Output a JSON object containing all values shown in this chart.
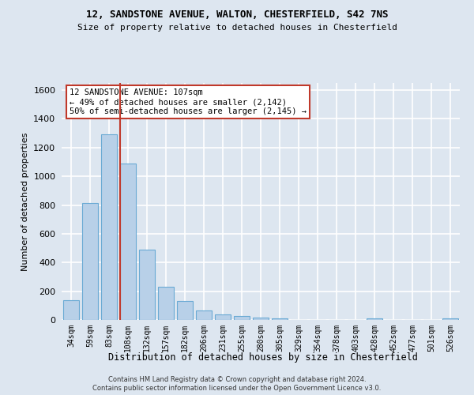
{
  "title_line1": "12, SANDSTONE AVENUE, WALTON, CHESTERFIELD, S42 7NS",
  "title_line2": "Size of property relative to detached houses in Chesterfield",
  "xlabel": "Distribution of detached houses by size in Chesterfield",
  "ylabel": "Number of detached properties",
  "footer1": "Contains HM Land Registry data © Crown copyright and database right 2024.",
  "footer2": "Contains public sector information licensed under the Open Government Licence v3.0.",
  "bar_labels": [
    "34sqm",
    "59sqm",
    "83sqm",
    "108sqm",
    "132sqm",
    "157sqm",
    "182sqm",
    "206sqm",
    "231sqm",
    "255sqm",
    "280sqm",
    "305sqm",
    "329sqm",
    "354sqm",
    "378sqm",
    "403sqm",
    "428sqm",
    "452sqm",
    "477sqm",
    "501sqm",
    "526sqm"
  ],
  "bar_values": [
    135,
    815,
    1295,
    1090,
    490,
    232,
    130,
    65,
    37,
    25,
    15,
    12,
    0,
    0,
    0,
    0,
    13,
    0,
    0,
    0,
    13
  ],
  "bar_color": "#b8d0e8",
  "bar_edge_color": "#6aaad4",
  "vline_color": "#c0392b",
  "vline_x": 2.575,
  "annotation_text": "12 SANDSTONE AVENUE: 107sqm\n← 49% of detached houses are smaller (2,142)\n50% of semi-detached houses are larger (2,145) →",
  "annotation_box_color": "#ffffff",
  "annotation_box_edge": "#c0392b",
  "ylim": [
    0,
    1650
  ],
  "yticks": [
    0,
    200,
    400,
    600,
    800,
    1000,
    1200,
    1400,
    1600
  ],
  "bg_color": "#dde6f0",
  "plot_bg_color": "#dde6f0",
  "grid_color": "#ffffff"
}
